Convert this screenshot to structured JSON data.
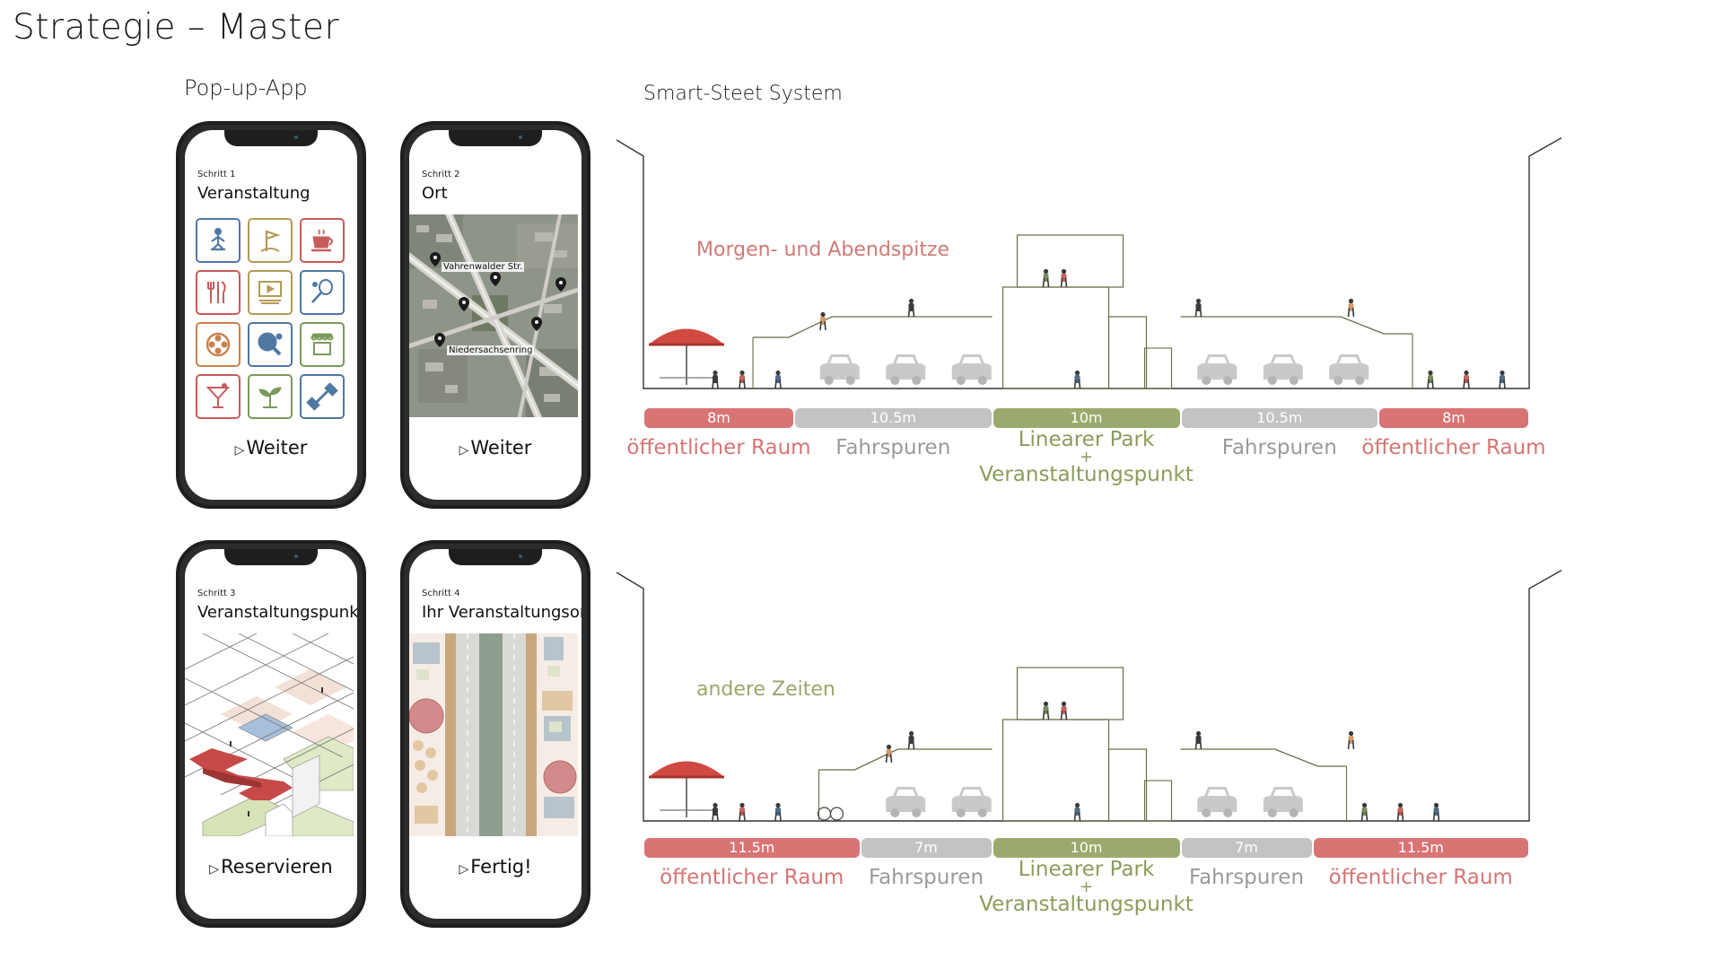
{
  "title": "Strategie – Master",
  "app": {
    "title": "Pop-up-App",
    "screens": [
      {
        "step": "Schritt 1",
        "title": "Veranstaltung",
        "button": "Weiter"
      },
      {
        "step": "Schritt 2",
        "title": "Ort",
        "button": "Weiter",
        "map_labels": [
          "Vahrenwalder Str.",
          "Niedersachsenring"
        ]
      },
      {
        "step": "Schritt 3",
        "title": "Veranstaltungspunkt",
        "button": "Reservieren"
      },
      {
        "step": "Schritt 4",
        "title": "Ihr Veranstaltungsort",
        "button": "Fertig!"
      }
    ],
    "event_icons": [
      {
        "icon": "yoga-icon",
        "color": "#4f78a2"
      },
      {
        "icon": "golf-icon",
        "color": "#b59a56"
      },
      {
        "icon": "coffee-icon",
        "color": "#c75b5b"
      },
      {
        "icon": "dining-icon",
        "color": "#c75b5b"
      },
      {
        "icon": "cinema-icon",
        "color": "#b59a56"
      },
      {
        "icon": "badminton-icon",
        "color": "#4f78a2"
      },
      {
        "icon": "film-reel-icon",
        "color": "#c8824f"
      },
      {
        "icon": "table-tennis-icon",
        "color": "#4f78a2"
      },
      {
        "icon": "market-stall-icon",
        "color": "#7a9a5a"
      },
      {
        "icon": "cocktail-icon",
        "color": "#c75b5b"
      },
      {
        "icon": "plant-icon",
        "color": "#7a9a5a"
      },
      {
        "icon": "dumbbell-icon",
        "color": "#4f78a2"
      }
    ]
  },
  "system": {
    "title": "Smart-Steet System",
    "sections": [
      {
        "label": "Morgen- und Abendspitze",
        "label_color": "#d07a76",
        "lanes": [
          {
            "width": "8m",
            "label": "öffentlicher Raum",
            "share": 8,
            "color": "#d97474"
          },
          {
            "width": "10.5m",
            "label": "Fahrspuren",
            "share": 10.5,
            "color": "#c3c3c3"
          },
          {
            "width": "10m",
            "label": "Linearer Park",
            "plus": "+",
            "label2": "Veranstaltungspunkt",
            "share": 10,
            "color": "#9aaa6c"
          },
          {
            "width": "10.5m",
            "label": "Fahrspuren",
            "share": 10.5,
            "color": "#c3c3c3"
          },
          {
            "width": "8m",
            "label": "öffentlicher Raum",
            "share": 8,
            "color": "#d97474"
          }
        ],
        "cars_left": 3,
        "cars_right": 3
      },
      {
        "label": "andere Zeiten",
        "label_color": "#9aa76a",
        "lanes": [
          {
            "width": "11.5m",
            "label": "öffentlicher Raum",
            "share": 11.5,
            "color": "#d97474"
          },
          {
            "width": "7m",
            "label": "Fahrspuren",
            "share": 7,
            "color": "#c3c3c3"
          },
          {
            "width": "10m",
            "label": "Linearer Park",
            "plus": "+",
            "label2": "Veranstaltungspunkt",
            "share": 10,
            "color": "#9aaa6c"
          },
          {
            "width": "7m",
            "label": "Fahrspuren",
            "share": 7,
            "color": "#c3c3c3"
          },
          {
            "width": "11.5m",
            "label": "öffentlicher Raum",
            "share": 11.5,
            "color": "#d97474"
          }
        ],
        "cars_left": 2,
        "cars_right": 2
      }
    ]
  },
  "colors": {
    "public": "#d97474",
    "lanes": "#c3c3c3",
    "park": "#9aaa6c",
    "park_text": "#8c9c5a",
    "public_text": "#d57575",
    "lanes_text": "#9a9a9a"
  }
}
